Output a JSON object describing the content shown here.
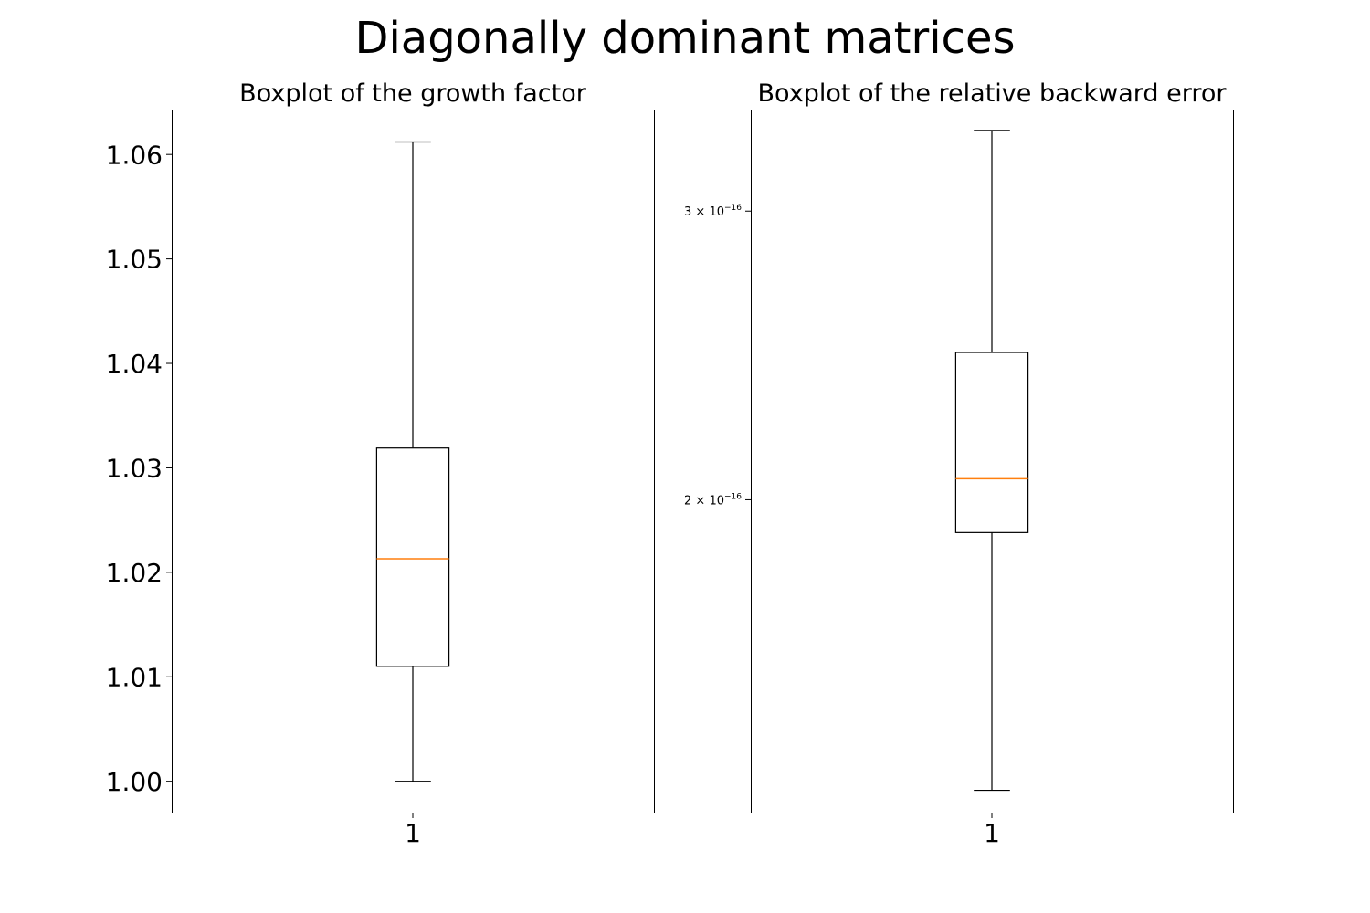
{
  "figure": {
    "title": "Diagonally dominant matrices"
  },
  "colors": {
    "median": "#ff7f0e",
    "box": "#000000",
    "background": "#ffffff"
  },
  "chart_data": [
    {
      "type": "boxplot",
      "title": "Boxplot of the growth factor",
      "xlabel": "",
      "ylabel": "",
      "categories": [
        "1"
      ],
      "yscale": "linear",
      "ylim": [
        0.997,
        1.0643
      ],
      "yticks": [
        1.0,
        1.01,
        1.02,
        1.03,
        1.04,
        1.05,
        1.06
      ],
      "ytick_labels": [
        "1.00",
        "1.01",
        "1.02",
        "1.03",
        "1.04",
        "1.05",
        "1.06"
      ],
      "boxes": [
        {
          "whisker_low": 1.0,
          "q1": 1.011,
          "median": 1.0213,
          "q3": 1.0319,
          "whisker_high": 1.0612
        }
      ]
    },
    {
      "type": "boxplot",
      "title": "Boxplot of the relative backward error",
      "xlabel": "",
      "ylabel": "",
      "categories": [
        "1"
      ],
      "yscale": "log",
      "ylim": [
        1.289e-16,
        3.46e-16
      ],
      "yticks": [
        2e-16,
        3e-16
      ],
      "ytick_labels": [
        {
          "base": "2 × 10",
          "exp": "−16"
        },
        {
          "base": "3 × 10",
          "exp": "−16"
        }
      ],
      "boxes": [
        {
          "whisker_low": 1.33e-16,
          "q1": 1.91e-16,
          "median": 2.06e-16,
          "q3": 2.46e-16,
          "whisker_high": 3.36e-16
        }
      ]
    }
  ]
}
